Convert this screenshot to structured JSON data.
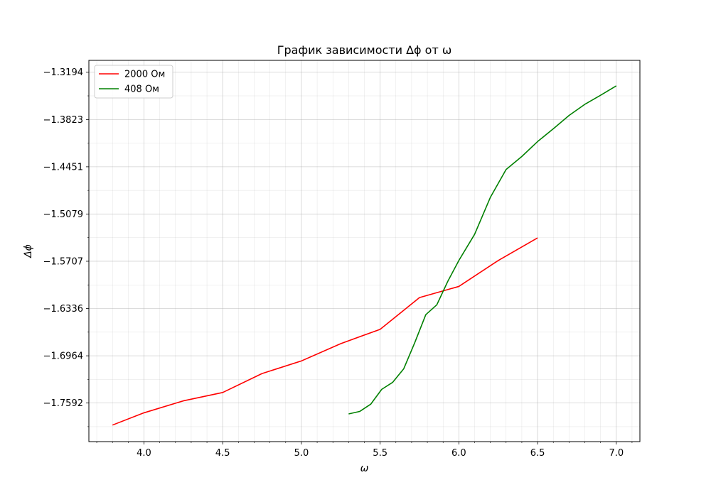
{
  "chart_data": {
    "type": "line",
    "title": "График зависимости Δϕ от ω",
    "xlabel": "ω",
    "ylabel": "Δϕ",
    "xlim": [
      3.65,
      7.15
    ],
    "ylim": [
      -1.8105,
      -1.3036
    ],
    "x_ticks": [
      4.0,
      4.5,
      5.0,
      5.5,
      6.0,
      6.5,
      7.0
    ],
    "x_tick_labels": [
      "4.0",
      "4.5",
      "5.0",
      "5.5",
      "6.0",
      "6.5",
      "7.0"
    ],
    "y_ticks": [
      -1.3194,
      -1.3823,
      -1.4451,
      -1.5079,
      -1.5707,
      -1.6336,
      -1.6964,
      -1.7592
    ],
    "y_tick_labels": [
      "−1.3194",
      "−1.3823",
      "−1.4451",
      "−1.5079",
      "−1.5707",
      "−1.6336",
      "−1.6964",
      "−1.7592"
    ],
    "grid": true,
    "minor_grid": true,
    "legend_position": "top-left",
    "series": [
      {
        "name": "2000 Ом",
        "color": "#ff0000",
        "x": [
          3.8,
          4.0,
          4.25,
          4.5,
          4.75,
          5.0,
          5.25,
          5.5,
          5.75,
          6.0,
          6.25,
          6.5
        ],
        "y": [
          -1.7885,
          -1.7722,
          -1.7563,
          -1.7452,
          -1.72,
          -1.7032,
          -1.6802,
          -1.6612,
          -1.619,
          -1.6042,
          -1.5697,
          -1.5396
        ]
      },
      {
        "name": "408 Ом",
        "color": "#008000",
        "x": [
          5.3,
          5.37,
          5.44,
          5.51,
          5.58,
          5.65,
          5.72,
          5.79,
          5.86,
          5.93,
          6.0,
          6.1,
          6.2,
          6.3,
          6.4,
          6.5,
          6.6,
          6.7,
          6.8,
          6.9,
          7.0
        ],
        "y": [
          -1.7737,
          -1.7704,
          -1.7608,
          -1.741,
          -1.7316,
          -1.7136,
          -1.6789,
          -1.6417,
          -1.6286,
          -1.5973,
          -1.5697,
          -1.5349,
          -1.4858,
          -1.4487,
          -1.4314,
          -1.4116,
          -1.3946,
          -1.3769,
          -1.3621,
          -1.35,
          -1.3375
        ]
      }
    ]
  }
}
